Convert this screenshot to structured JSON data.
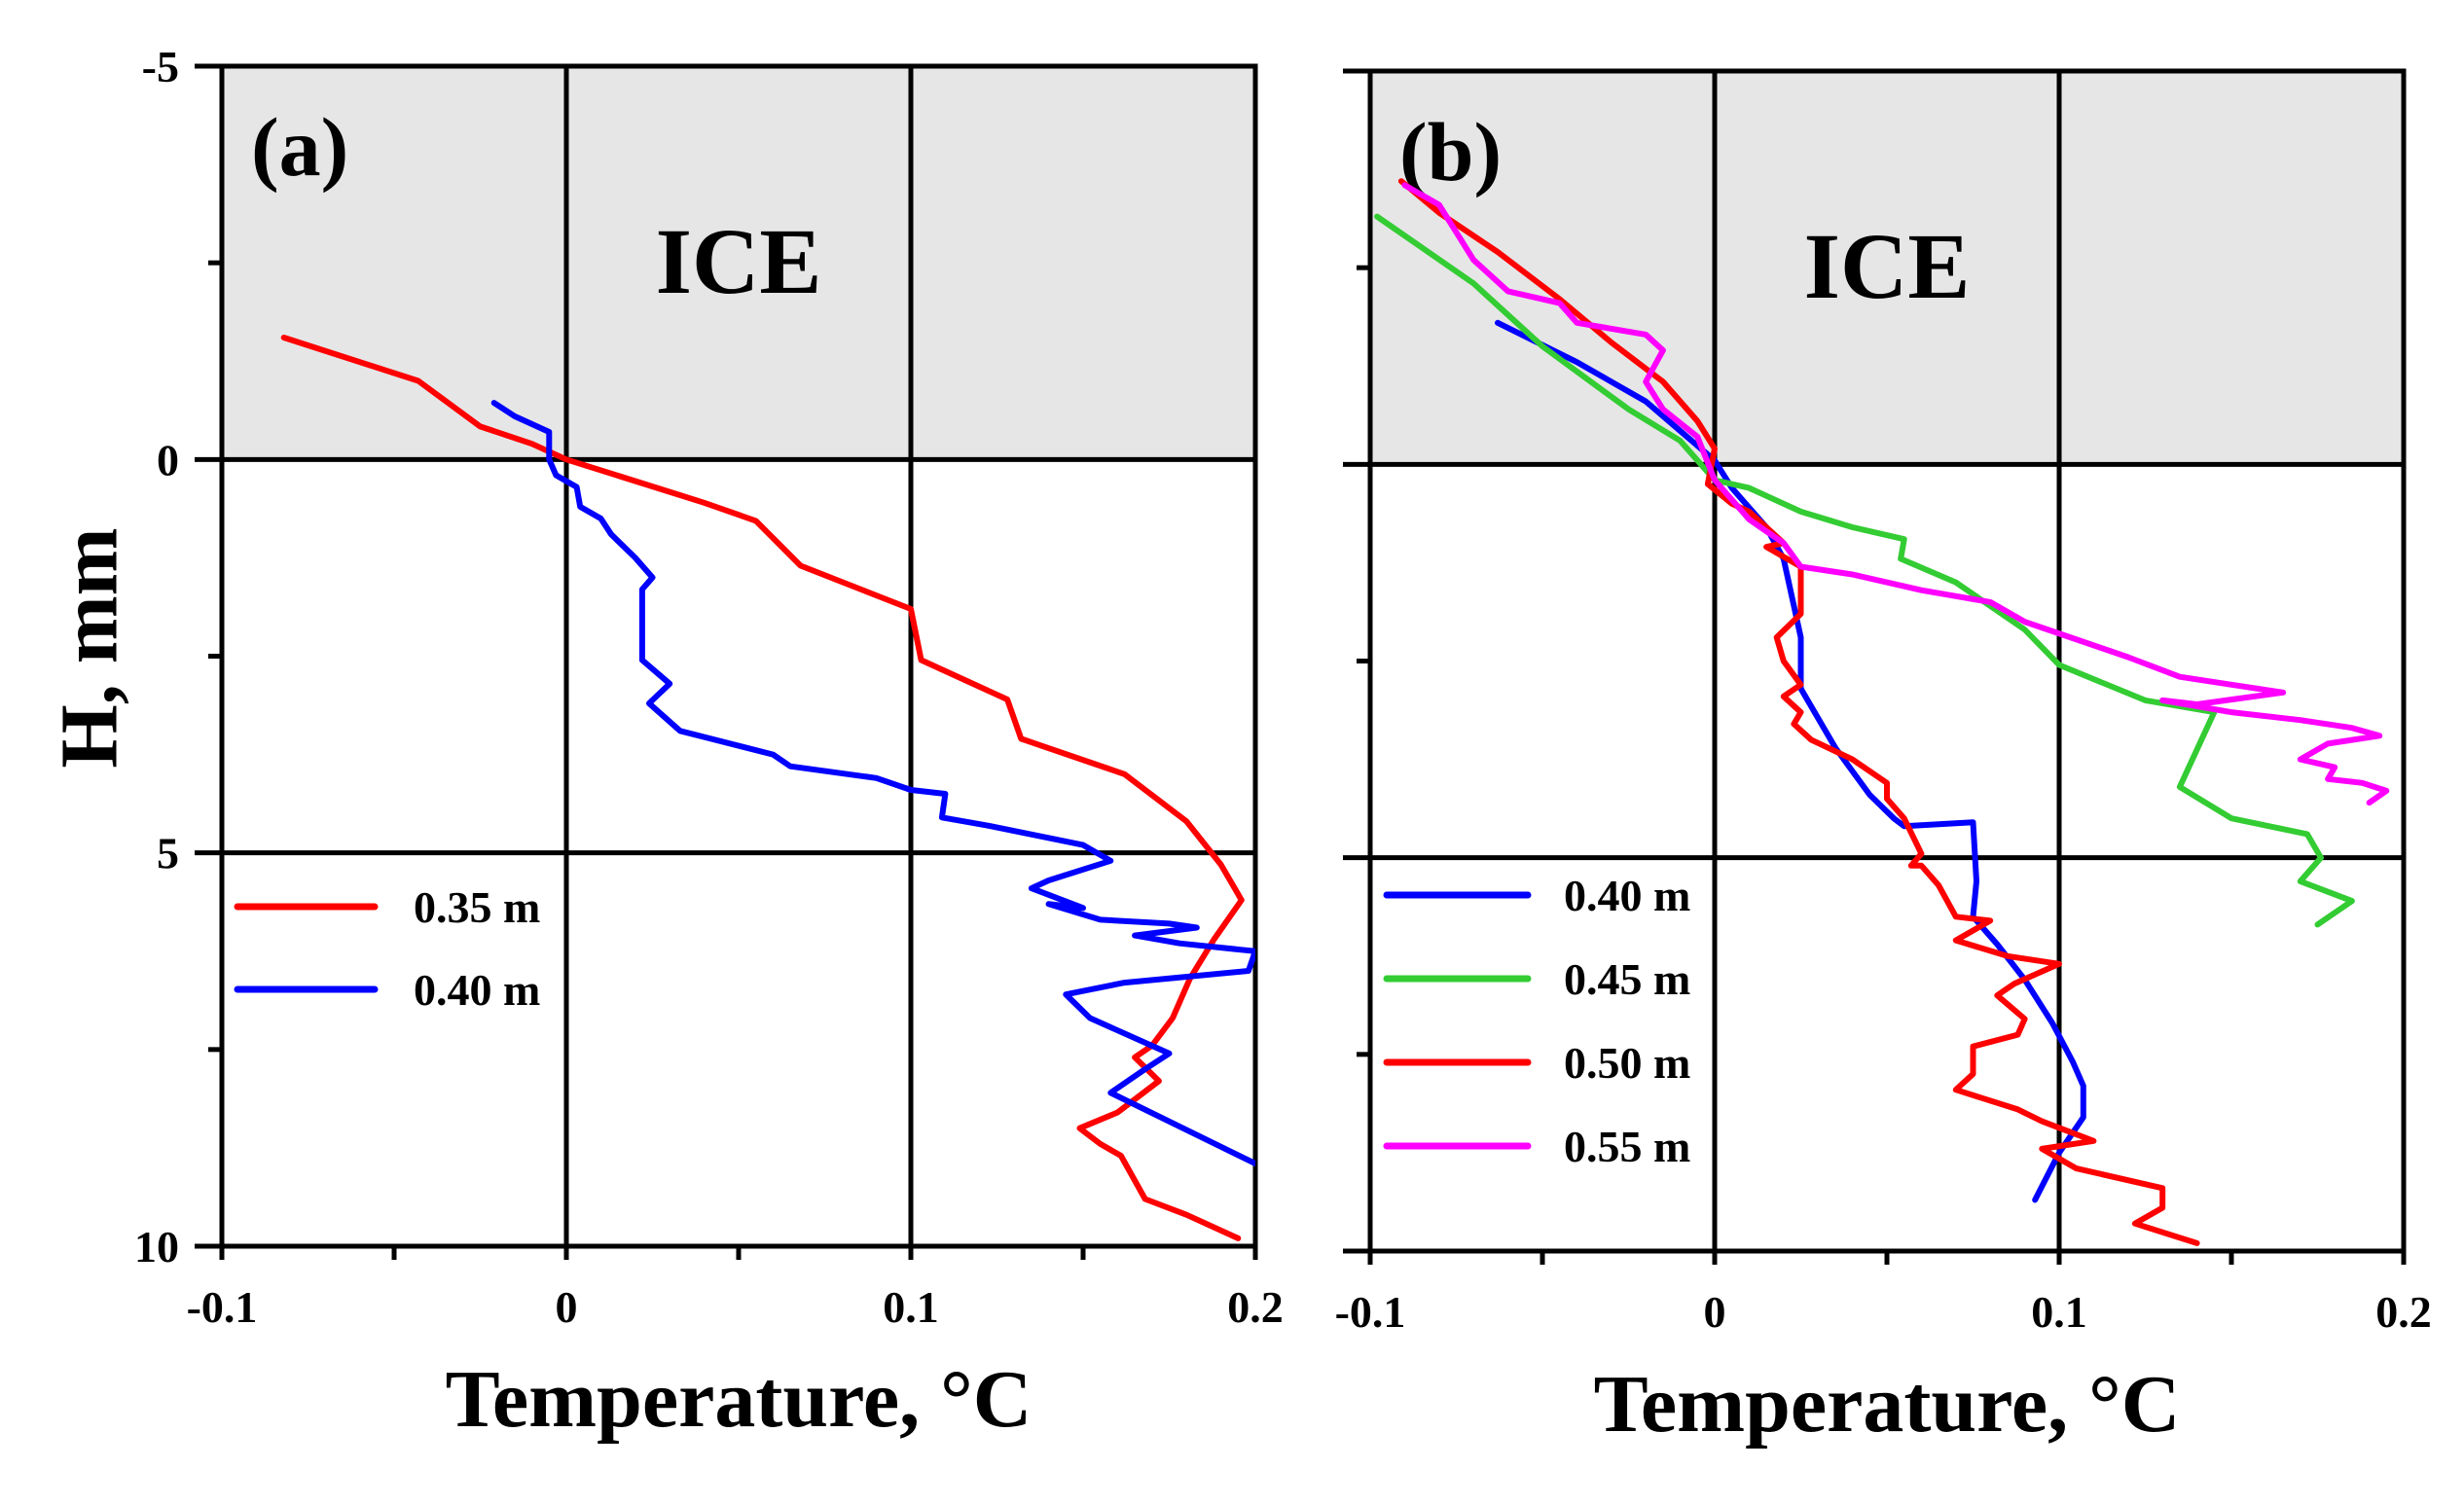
{
  "chart_data": [
    {
      "type": "line",
      "panel_label": "(a)",
      "region_label": "ICE",
      "region": {
        "y_from": -5,
        "y_to": 0,
        "color": "#e6e6e6"
      },
      "xlabel": "Temperature, °C",
      "ylabel": "H, mm",
      "xlim": [
        -0.1,
        0.2
      ],
      "ylim": [
        -5,
        10
      ],
      "y_inverted": true,
      "xticks": [
        -0.1,
        0,
        0.1,
        0.2
      ],
      "xtick_labels": [
        "-0.1",
        "0",
        "0.1",
        "0.2"
      ],
      "yticks": [
        -5,
        0,
        5,
        10
      ],
      "ytick_labels": [
        "-5",
        "0",
        "5",
        "10"
      ],
      "grid": true,
      "legend_position": "left, below H=5",
      "series": [
        {
          "name": "0.35 m",
          "color": "#ff0000",
          "points": [
            [
              -0.082,
              -1.55
            ],
            [
              -0.043,
              -1.0
            ],
            [
              -0.025,
              -0.42
            ],
            [
              -0.01,
              -0.2
            ],
            [
              0.0,
              0.0
            ],
            [
              0.04,
              0.55
            ],
            [
              0.055,
              0.78
            ],
            [
              0.068,
              1.35
            ],
            [
              0.1,
              1.9
            ],
            [
              0.103,
              2.55
            ],
            [
              0.128,
              3.05
            ],
            [
              0.132,
              3.55
            ],
            [
              0.162,
              4.0
            ],
            [
              0.18,
              4.6
            ],
            [
              0.19,
              5.15
            ],
            [
              0.196,
              5.6
            ],
            [
              0.188,
              6.1
            ],
            [
              0.181,
              6.6
            ],
            [
              0.176,
              7.1
            ],
            [
              0.17,
              7.45
            ],
            [
              0.165,
              7.6
            ],
            [
              0.172,
              7.9
            ],
            [
              0.16,
              8.3
            ],
            [
              0.149,
              8.5
            ],
            [
              0.155,
              8.7
            ],
            [
              0.161,
              8.85
            ],
            [
              0.168,
              9.4
            ],
            [
              0.18,
              9.6
            ],
            [
              0.195,
              9.9
            ]
          ]
        },
        {
          "name": "0.40 m",
          "color": "#0000ff",
          "points": [
            [
              -0.021,
              -0.72
            ],
            [
              -0.015,
              -0.55
            ],
            [
              -0.005,
              -0.35
            ],
            [
              -0.005,
              0.0
            ],
            [
              -0.003,
              0.2
            ],
            [
              0.003,
              0.35
            ],
            [
              0.004,
              0.6
            ],
            [
              0.01,
              0.75
            ],
            [
              0.013,
              0.95
            ],
            [
              0.02,
              1.25
            ],
            [
              0.025,
              1.5
            ],
            [
              0.022,
              1.65
            ],
            [
              0.022,
              2.55
            ],
            [
              0.03,
              2.85
            ],
            [
              0.024,
              3.1
            ],
            [
              0.033,
              3.45
            ],
            [
              0.06,
              3.75
            ],
            [
              0.065,
              3.9
            ],
            [
              0.09,
              4.05
            ],
            [
              0.1,
              4.2
            ],
            [
              0.11,
              4.25
            ],
            [
              0.109,
              4.55
            ],
            [
              0.122,
              4.65
            ],
            [
              0.15,
              4.9
            ],
            [
              0.158,
              5.1
            ],
            [
              0.14,
              5.35
            ],
            [
              0.135,
              5.45
            ],
            [
              0.15,
              5.7
            ],
            [
              0.14,
              5.65
            ],
            [
              0.155,
              5.85
            ],
            [
              0.175,
              5.9
            ],
            [
              0.183,
              5.95
            ],
            [
              0.165,
              6.05
            ],
            [
              0.178,
              6.15
            ],
            [
              0.2,
              6.25
            ],
            [
              0.198,
              6.5
            ],
            [
              0.162,
              6.65
            ],
            [
              0.145,
              6.8
            ],
            [
              0.152,
              7.1
            ],
            [
              0.175,
              7.55
            ],
            [
              0.168,
              7.75
            ],
            [
              0.158,
              8.05
            ],
            [
              0.2,
              8.95
            ]
          ]
        }
      ]
    },
    {
      "type": "line",
      "panel_label": "(b)",
      "region_label": "ICE",
      "region": {
        "y_from": -5,
        "y_to": 0,
        "color": "#e6e6e6"
      },
      "xlabel": "Temperature, °C",
      "ylabel": "",
      "xlim": [
        -0.1,
        0.2
      ],
      "ylim": [
        -5,
        10
      ],
      "y_inverted": true,
      "xticks": [
        -0.1,
        0,
        0.1,
        0.2
      ],
      "xtick_labels": [
        "-0.1",
        "0",
        "0.1",
        "0.2"
      ],
      "yticks": [
        -5,
        0,
        5,
        10
      ],
      "ytick_labels": [
        "",
        "",
        "",
        ""
      ],
      "grid": true,
      "legend_position": "left, below H=5",
      "series": [
        {
          "name": "0.40 m",
          "color": "#0000ff",
          "points": [
            [
              -0.063,
              -1.8
            ],
            [
              -0.04,
              -1.3
            ],
            [
              -0.02,
              -0.8
            ],
            [
              0.0,
              -0.05
            ],
            [
              0.005,
              0.3
            ],
            [
              0.015,
              0.8
            ],
            [
              0.02,
              1.2
            ],
            [
              0.025,
              2.2
            ],
            [
              0.025,
              2.85
            ],
            [
              0.035,
              3.6
            ],
            [
              0.045,
              4.2
            ],
            [
              0.052,
              4.5
            ],
            [
              0.055,
              4.6
            ],
            [
              0.075,
              4.55
            ],
            [
              0.076,
              5.3
            ],
            [
              0.075,
              5.75
            ],
            [
              0.082,
              6.1
            ],
            [
              0.09,
              6.55
            ],
            [
              0.098,
              7.1
            ],
            [
              0.104,
              7.6
            ],
            [
              0.107,
              7.9
            ],
            [
              0.107,
              8.3
            ],
            [
              0.1,
              8.75
            ],
            [
              0.093,
              9.35
            ]
          ]
        },
        {
          "name": "0.45 m",
          "color": "#33cc33",
          "points": [
            [
              -0.098,
              -3.15
            ],
            [
              -0.07,
              -2.3
            ],
            [
              -0.05,
              -1.5
            ],
            [
              -0.025,
              -0.7
            ],
            [
              -0.01,
              -0.3
            ],
            [
              0.0,
              0.2
            ],
            [
              0.01,
              0.3
            ],
            [
              0.025,
              0.6
            ],
            [
              0.04,
              0.8
            ],
            [
              0.055,
              0.95
            ],
            [
              0.054,
              1.2
            ],
            [
              0.07,
              1.5
            ],
            [
              0.09,
              2.1
            ],
            [
              0.1,
              2.55
            ],
            [
              0.125,
              3.0
            ],
            [
              0.145,
              3.15
            ],
            [
              0.135,
              4.1
            ],
            [
              0.15,
              4.5
            ],
            [
              0.172,
              4.7
            ],
            [
              0.176,
              5.0
            ],
            [
              0.17,
              5.3
            ],
            [
              0.185,
              5.55
            ],
            [
              0.175,
              5.85
            ]
          ]
        },
        {
          "name": "0.50 m",
          "color": "#ff0000",
          "points": [
            [
              -0.091,
              -3.6
            ],
            [
              -0.08,
              -3.2
            ],
            [
              -0.063,
              -2.7
            ],
            [
              -0.045,
              -2.1
            ],
            [
              -0.03,
              -1.55
            ],
            [
              -0.015,
              -1.05
            ],
            [
              -0.005,
              -0.55
            ],
            [
              0.0,
              -0.2
            ],
            [
              -0.002,
              0.25
            ],
            [
              0.005,
              0.5
            ],
            [
              0.01,
              0.6
            ],
            [
              0.015,
              0.8
            ],
            [
              0.02,
              1.0
            ],
            [
              0.015,
              1.05
            ],
            [
              0.025,
              1.3
            ],
            [
              0.025,
              1.9
            ],
            [
              0.018,
              2.2
            ],
            [
              0.02,
              2.5
            ],
            [
              0.025,
              2.8
            ],
            [
              0.02,
              2.95
            ],
            [
              0.025,
              3.15
            ],
            [
              0.023,
              3.3
            ],
            [
              0.028,
              3.5
            ],
            [
              0.04,
              3.75
            ],
            [
              0.05,
              4.05
            ],
            [
              0.05,
              4.25
            ],
            [
              0.055,
              4.5
            ],
            [
              0.06,
              4.95
            ],
            [
              0.057,
              5.1
            ],
            [
              0.06,
              5.1
            ],
            [
              0.065,
              5.35
            ],
            [
              0.07,
              5.75
            ],
            [
              0.08,
              5.8
            ],
            [
              0.07,
              6.05
            ],
            [
              0.085,
              6.25
            ],
            [
              0.1,
              6.35
            ],
            [
              0.087,
              6.6
            ],
            [
              0.082,
              6.75
            ],
            [
              0.09,
              7.05
            ],
            [
              0.088,
              7.25
            ],
            [
              0.075,
              7.4
            ],
            [
              0.075,
              7.75
            ],
            [
              0.07,
              7.95
            ],
            [
              0.088,
              8.2
            ],
            [
              0.095,
              8.35
            ],
            [
              0.11,
              8.6
            ],
            [
              0.095,
              8.7
            ],
            [
              0.105,
              8.95
            ],
            [
              0.13,
              9.2
            ],
            [
              0.13,
              9.45
            ],
            [
              0.122,
              9.65
            ],
            [
              0.14,
              9.9
            ]
          ]
        },
        {
          "name": "0.55 m",
          "color": "#ff00ff",
          "points": [
            [
              -0.09,
              -3.55
            ],
            [
              -0.08,
              -3.3
            ],
            [
              -0.07,
              -2.6
            ],
            [
              -0.06,
              -2.2
            ],
            [
              -0.045,
              -2.05
            ],
            [
              -0.04,
              -1.8
            ],
            [
              -0.02,
              -1.65
            ],
            [
              -0.015,
              -1.45
            ],
            [
              -0.02,
              -1.05
            ],
            [
              -0.015,
              -0.7
            ],
            [
              -0.005,
              -0.35
            ],
            [
              0.0,
              0.2
            ],
            [
              0.005,
              0.45
            ],
            [
              0.01,
              0.7
            ],
            [
              0.015,
              0.85
            ],
            [
              0.02,
              1.0
            ],
            [
              0.025,
              1.3
            ],
            [
              0.04,
              1.4
            ],
            [
              0.06,
              1.6
            ],
            [
              0.08,
              1.75
            ],
            [
              0.09,
              2.0
            ],
            [
              0.12,
              2.45
            ],
            [
              0.135,
              2.7
            ],
            [
              0.15,
              2.8
            ],
            [
              0.165,
              2.9
            ],
            [
              0.14,
              3.05
            ],
            [
              0.13,
              3.0
            ],
            [
              0.15,
              3.15
            ],
            [
              0.17,
              3.25
            ],
            [
              0.185,
              3.35
            ],
            [
              0.193,
              3.45
            ],
            [
              0.178,
              3.55
            ],
            [
              0.17,
              3.75
            ],
            [
              0.18,
              3.85
            ],
            [
              0.178,
              4.0
            ],
            [
              0.188,
              4.05
            ],
            [
              0.195,
              4.15
            ],
            [
              0.19,
              4.3
            ]
          ]
        }
      ]
    }
  ]
}
